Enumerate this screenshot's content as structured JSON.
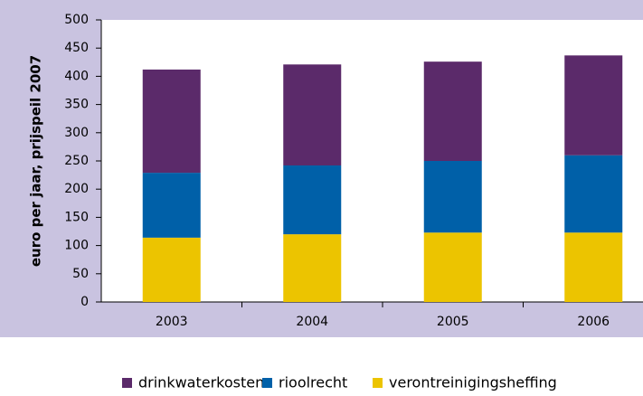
{
  "chart_data": {
    "type": "stacked_bar",
    "y_label": "euro per jaar, prijspeil 2007",
    "categories": [
      "2003",
      "2004",
      "2005",
      "2006"
    ],
    "series": [
      {
        "name": "verontreinigingsheffing",
        "color": "#ecc400",
        "values": [
          114,
          120,
          123,
          123
        ]
      },
      {
        "name": "rioolrecht",
        "color": "#0060a8",
        "values": [
          115,
          122,
          127,
          137
        ]
      },
      {
        "name": "drinkwaterkosten",
        "color": "#5b2a6a",
        "values": [
          183,
          179,
          176,
          177
        ]
      }
    ],
    "legend_order": [
      2,
      1,
      0
    ],
    "ylim": [
      0,
      500
    ],
    "yticks": [
      0,
      50,
      100,
      150,
      200,
      250,
      300,
      350,
      400,
      450,
      500
    ]
  }
}
